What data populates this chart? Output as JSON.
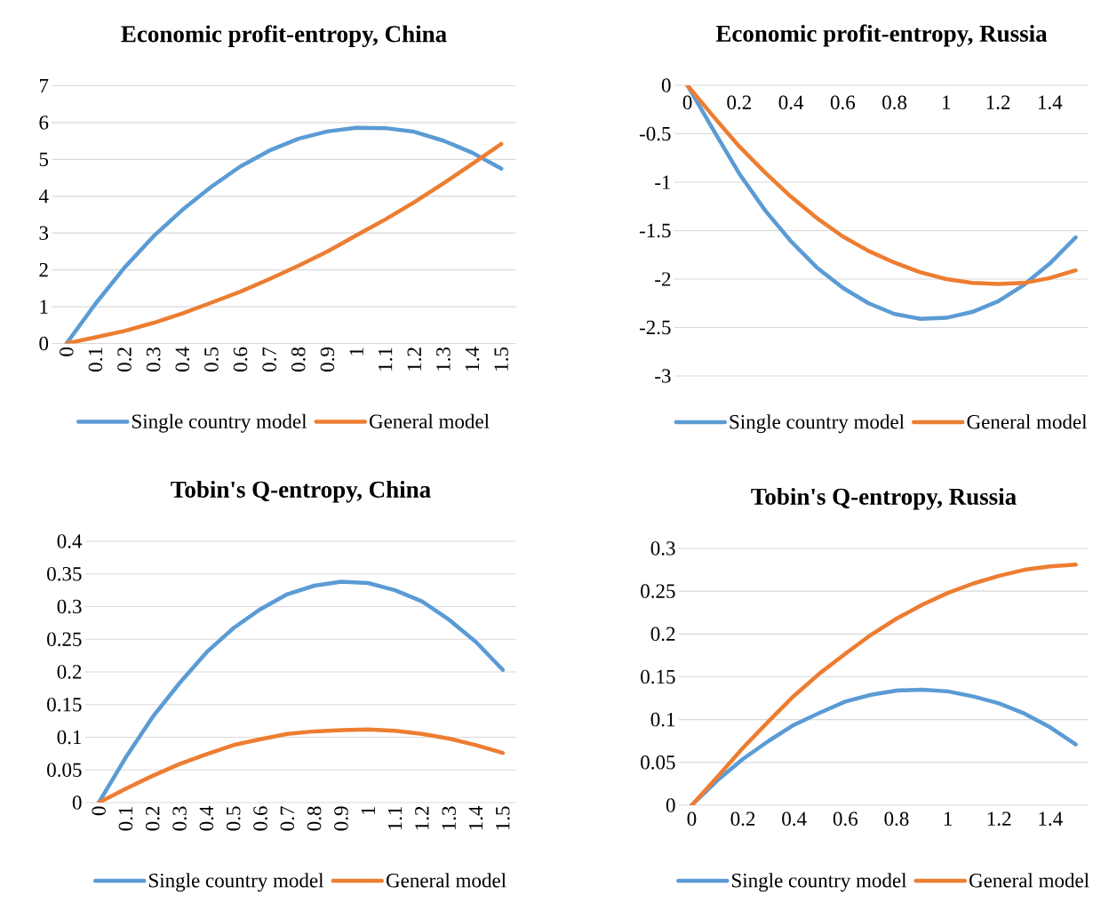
{
  "chart_data": [
    {
      "type": "line",
      "title": "**Economic profit-entropy, China**",
      "categories": [
        "0",
        "0.1",
        "0.2",
        "0.3",
        "0.4",
        "0.5",
        "0.6",
        "0.7",
        "0.8",
        "0.9",
        "1",
        "1.1",
        "1.2",
        "1.3",
        "1.4",
        "1.5"
      ],
      "ylim": [
        0,
        7
      ],
      "yticks": [
        0,
        1,
        2,
        3,
        4,
        5,
        6,
        7
      ],
      "grid": "y",
      "legend": "bottom",
      "series": [
        {
          "name": "Single country model",
          "color": "#5b9bd5",
          "values": [
            0,
            1.08,
            2.06,
            2.91,
            3.63,
            4.26,
            4.81,
            5.24,
            5.56,
            5.76,
            5.86,
            5.85,
            5.75,
            5.51,
            5.18,
            4.75
          ]
        },
        {
          "name": "General model",
          "color": "#ed7d31",
          "values": [
            0,
            0.17,
            0.34,
            0.56,
            0.82,
            1.11,
            1.41,
            1.75,
            2.11,
            2.5,
            2.94,
            3.37,
            3.84,
            4.35,
            4.88,
            5.42
          ]
        }
      ]
    },
    {
      "type": "line",
      "title": "**Economic profit-entropy, Russia**",
      "categories": [
        "0",
        null,
        "0.2",
        null,
        "0.4",
        null,
        "0.6",
        null,
        "0.8",
        null,
        "1",
        null,
        "1.2",
        null,
        "1.4",
        null
      ],
      "ylim": [
        -3,
        0
      ],
      "yticks": [
        -3,
        -2.5,
        -2,
        -1.5,
        -1,
        -0.5,
        0
      ],
      "grid": "y",
      "legend": "bottom",
      "series": [
        {
          "name": "Single country model",
          "color": "#5b9bd5",
          "values": [
            0,
            -0.46,
            -0.91,
            -1.29,
            -1.61,
            -1.88,
            -2.09,
            -2.25,
            -2.36,
            -2.41,
            -2.4,
            -2.34,
            -2.23,
            -2.06,
            -1.84,
            -1.57
          ]
        },
        {
          "name": "General model",
          "color": "#ed7d31",
          "values": [
            0,
            -0.32,
            -0.63,
            -0.9,
            -1.15,
            -1.37,
            -1.56,
            -1.71,
            -1.83,
            -1.93,
            -2.0,
            -2.04,
            -2.05,
            -2.04,
            -1.99,
            -1.91
          ]
        }
      ]
    },
    {
      "type": "line",
      "title": "**Tobin's Q-entropy, China**",
      "categories": [
        "0",
        "0.1",
        "0.2",
        "0.3",
        "0.4",
        "0.5",
        "0.6",
        "0.7",
        "0.8",
        "0.9",
        "1",
        "1.1",
        "1.2",
        "1.3",
        "1.4",
        "1.5"
      ],
      "ylim": [
        0,
        0.4
      ],
      "yticks": [
        0,
        0.05,
        0.1,
        0.15,
        0.2,
        0.25,
        0.3,
        0.35,
        0.4
      ],
      "grid": "y",
      "legend": "bottom",
      "series": [
        {
          "name": "Single country model",
          "color": "#5b9bd5",
          "values": [
            0,
            0.069,
            0.131,
            0.183,
            0.23,
            0.267,
            0.296,
            0.319,
            0.332,
            0.338,
            0.336,
            0.325,
            0.308,
            0.28,
            0.246,
            0.203
          ]
        },
        {
          "name": "General model",
          "color": "#ed7d31",
          "values": [
            0,
            0.021,
            0.041,
            0.059,
            0.074,
            0.088,
            0.097,
            0.105,
            0.109,
            0.111,
            0.112,
            0.11,
            0.105,
            0.098,
            0.088,
            0.076
          ]
        }
      ]
    },
    {
      "type": "line",
      "title": "**Tobin's Q-entropy, Russia**",
      "categories": [
        "0",
        null,
        "0.2",
        null,
        "0.4",
        null,
        "0.6",
        null,
        "0.8",
        null,
        "1",
        null,
        "1.2",
        null,
        "1.4",
        null
      ],
      "ylim": [
        0,
        0.3
      ],
      "yticks": [
        0,
        0.05,
        0.1,
        0.15,
        0.2,
        0.25,
        0.3
      ],
      "grid": "y",
      "legend": "bottom",
      "series": [
        {
          "name": "Single country model",
          "color": "#5b9bd5",
          "values": [
            0,
            0.029,
            0.054,
            0.075,
            0.094,
            0.108,
            0.121,
            0.129,
            0.134,
            0.135,
            0.133,
            0.127,
            0.119,
            0.107,
            0.091,
            0.071
          ]
        },
        {
          "name": "General model",
          "color": "#ed7d31",
          "values": [
            0,
            0.033,
            0.067,
            0.098,
            0.128,
            0.154,
            0.177,
            0.199,
            0.218,
            0.234,
            0.248,
            0.259,
            0.268,
            0.275,
            0.279,
            0.281
          ]
        }
      ]
    }
  ]
}
